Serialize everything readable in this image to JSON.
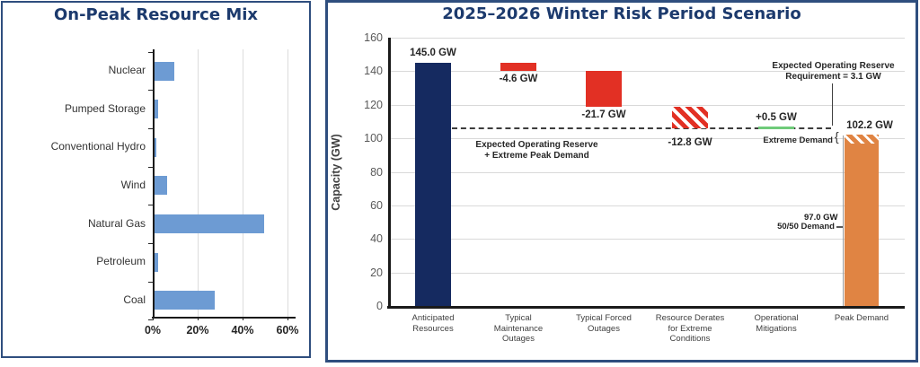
{
  "chart_data": [
    {
      "type": "bar",
      "orientation": "horizontal",
      "title": "On-Peak Resource Mix",
      "categories": [
        "Nuclear",
        "Pumped Storage",
        "Conventional Hydro",
        "Wind",
        "Natural Gas",
        "Petroleum",
        "Coal"
      ],
      "values": [
        9,
        2,
        1,
        6,
        49,
        2,
        27
      ],
      "value_unit": "%",
      "xlim": [
        0,
        60
      ],
      "x_ticks": [
        {
          "label": "0%",
          "value": 0
        },
        {
          "label": "20%",
          "value": 20
        },
        {
          "label": "40%",
          "value": 40
        },
        {
          "label": "60%",
          "value": 60
        }
      ],
      "grid": "vertical gridlines every 20%",
      "bar_color": "#6D9BD3"
    },
    {
      "type": "waterfall",
      "title": "2025–2026 Winter Risk Period Scenario",
      "ylabel": "Capacity (GW)",
      "ylim": [
        0,
        160
      ],
      "y_ticks": [
        0,
        20,
        40,
        60,
        80,
        100,
        120,
        140,
        160
      ],
      "grid": "horizontal gridlines every 20 GW",
      "categories": [
        "Anticipated\nResources",
        "Typical\nMaintenance\nOutages",
        "Typical Forced\nOutages",
        "Resource Derates\nfor Extreme\nConditions",
        "Operational\nMitigations",
        "Peak Demand"
      ],
      "segments": [
        {
          "category": "Anticipated Resources",
          "label": "145.0 GW",
          "from": 0,
          "to": 145.0,
          "style": "navy"
        },
        {
          "category": "Typical Maintenance Outages",
          "label": "-4.6 GW",
          "from": 140.4,
          "to": 145.0,
          "style": "red"
        },
        {
          "category": "Typical Forced Outages",
          "label": "-21.7 GW",
          "from": 118.7,
          "to": 140.4,
          "style": "red"
        },
        {
          "category": "Resource Derates for Extreme Conditions",
          "label": "-12.8 GW",
          "from": 105.9,
          "to": 118.7,
          "style": "red-hatch"
        },
        {
          "category": "Operational Mitigations",
          "label": "+0.5 GW",
          "from": 105.9,
          "to": 106.4,
          "style": "green-line"
        },
        {
          "category": "Peak Demand",
          "label": "97.0 GW",
          "from": 0,
          "to": 97.0,
          "style": "orange"
        },
        {
          "category": "Peak Demand",
          "label": "102.2 GW",
          "from": 97.0,
          "to": 102.2,
          "style": "orange-hatch"
        }
      ],
      "dashed_reference_line": {
        "value": 105.9,
        "label": "Expected Operating Reserve\n+ Extreme Peak Demand",
        "end_label": "102.2 GW"
      },
      "annotations": [
        {
          "id": "reserve-requirement",
          "text": "Expected Operating Reserve\nRequirement = 3.1 GW"
        },
        {
          "id": "extreme-demand",
          "text": "Extreme Demand"
        },
        {
          "id": "fifty-fifty-demand",
          "text": "50/50 Demand"
        }
      ],
      "colors": {
        "anticipated": "#152A60",
        "outage": "#E23024",
        "mitigation": "#6FCB7A",
        "demand": "#E08443",
        "gridline": "#D9D9D9",
        "axis": "#1A1A1A",
        "text": "#262626"
      }
    }
  ],
  "panel_border_color": "#2F4E7E",
  "title_color": "#1C3A6D"
}
